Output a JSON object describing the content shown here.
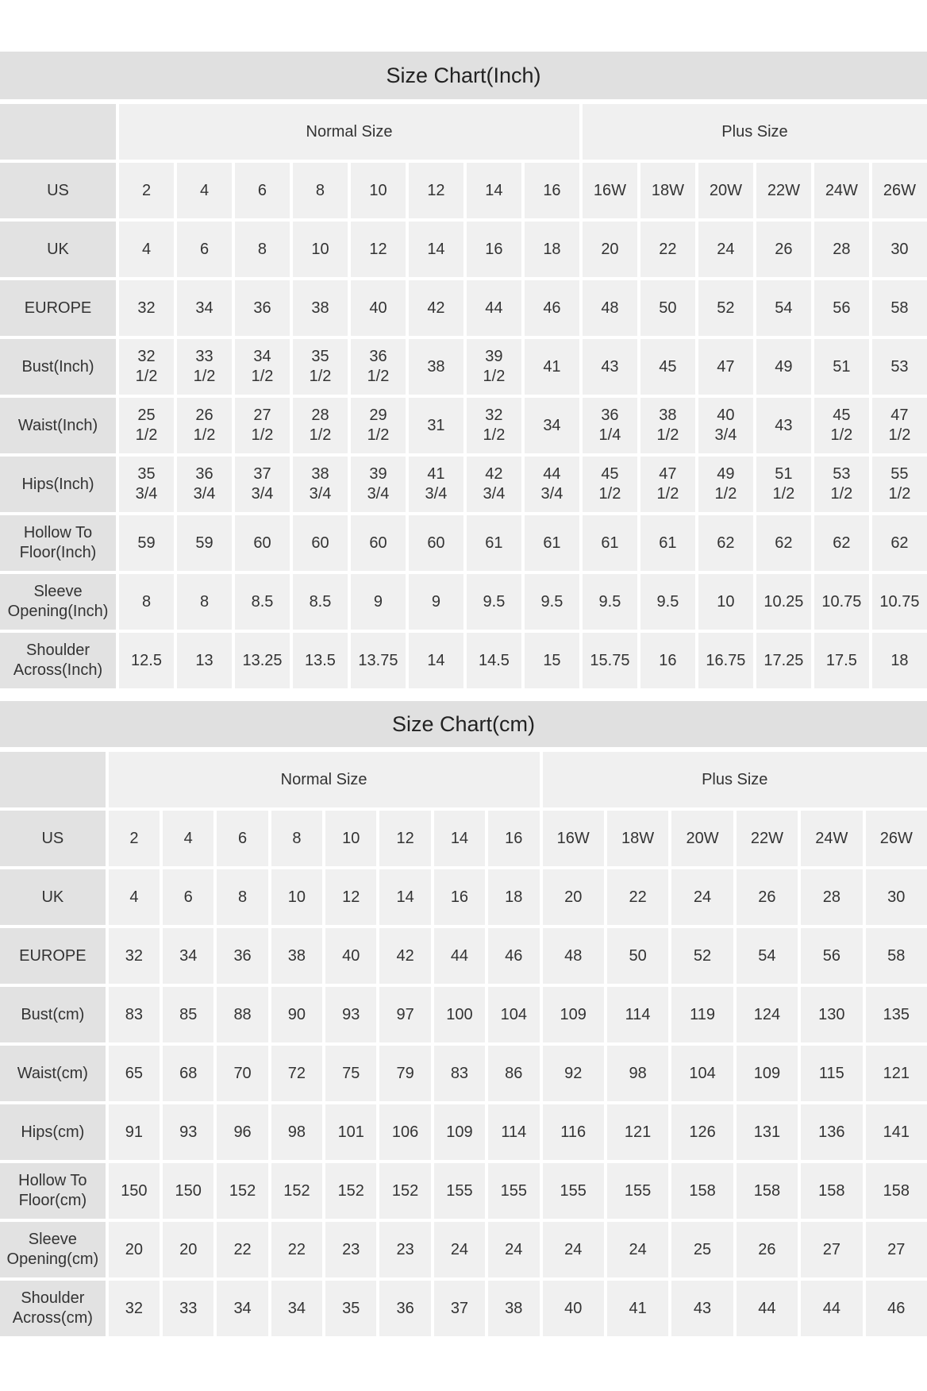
{
  "charts": [
    {
      "title": "Size Chart(Inch)",
      "groups": [
        "Normal Size",
        "Plus Size"
      ],
      "rows": [
        {
          "label": "US",
          "values": [
            "2",
            "4",
            "6",
            "8",
            "10",
            "12",
            "14",
            "16",
            "16W",
            "18W",
            "20W",
            "22W",
            "24W",
            "26W"
          ]
        },
        {
          "label": "UK",
          "values": [
            "4",
            "6",
            "8",
            "10",
            "12",
            "14",
            "16",
            "18",
            "20",
            "22",
            "24",
            "26",
            "28",
            "30"
          ]
        },
        {
          "label": "EUROPE",
          "values": [
            "32",
            "34",
            "36",
            "38",
            "40",
            "42",
            "44",
            "46",
            "48",
            "50",
            "52",
            "54",
            "56",
            "58"
          ]
        },
        {
          "label": "Bust(Inch)",
          "values": [
            "32 1/2",
            "33 1/2",
            "34 1/2",
            "35 1/2",
            "36 1/2",
            "38",
            "39 1/2",
            "41",
            "43",
            "45",
            "47",
            "49",
            "51",
            "53"
          ]
        },
        {
          "label": "Waist(Inch)",
          "values": [
            "25 1/2",
            "26 1/2",
            "27 1/2",
            "28 1/2",
            "29 1/2",
            "31",
            "32 1/2",
            "34",
            "36 1/4",
            "38 1/2",
            "40 3/4",
            "43",
            "45 1/2",
            "47 1/2"
          ]
        },
        {
          "label": "Hips(Inch)",
          "values": [
            "35 3/4",
            "36 3/4",
            "37 3/4",
            "38 3/4",
            "39 3/4",
            "41 3/4",
            "42 3/4",
            "44 3/4",
            "45 1/2",
            "47 1/2",
            "49 1/2",
            "51 1/2",
            "53 1/2",
            "55 1/2"
          ]
        },
        {
          "label": "Hollow To Floor(Inch)",
          "values": [
            "59",
            "59",
            "60",
            "60",
            "60",
            "60",
            "61",
            "61",
            "61",
            "61",
            "62",
            "62",
            "62",
            "62"
          ]
        },
        {
          "label": "Sleeve Opening(Inch)",
          "values": [
            "8",
            "8",
            "8.5",
            "8.5",
            "9",
            "9",
            "9.5",
            "9.5",
            "9.5",
            "9.5",
            "10",
            "10.25",
            "10.75",
            "10.75"
          ]
        },
        {
          "label": "Shoulder Across(Inch)",
          "values": [
            "12.5",
            "13",
            "13.25",
            "13.5",
            "13.75",
            "14",
            "14.5",
            "15",
            "15.75",
            "16",
            "16.75",
            "17.25",
            "17.5",
            "18"
          ]
        }
      ]
    },
    {
      "title": "Size Chart(cm)",
      "groups": [
        "Normal Size",
        "Plus Size"
      ],
      "rows": [
        {
          "label": "US",
          "values": [
            "2",
            "4",
            "6",
            "8",
            "10",
            "12",
            "14",
            "16",
            "16W",
            "18W",
            "20W",
            "22W",
            "24W",
            "26W"
          ]
        },
        {
          "label": "UK",
          "values": [
            "4",
            "6",
            "8",
            "10",
            "12",
            "14",
            "16",
            "18",
            "20",
            "22",
            "24",
            "26",
            "28",
            "30"
          ]
        },
        {
          "label": "EUROPE",
          "values": [
            "32",
            "34",
            "36",
            "38",
            "40",
            "42",
            "44",
            "46",
            "48",
            "50",
            "52",
            "54",
            "56",
            "58"
          ]
        },
        {
          "label": "Bust(cm)",
          "values": [
            "83",
            "85",
            "88",
            "90",
            "93",
            "97",
            "100",
            "104",
            "109",
            "114",
            "119",
            "124",
            "130",
            "135"
          ]
        },
        {
          "label": "Waist(cm)",
          "values": [
            "65",
            "68",
            "70",
            "72",
            "75",
            "79",
            "83",
            "86",
            "92",
            "98",
            "104",
            "109",
            "115",
            "121"
          ]
        },
        {
          "label": "Hips(cm)",
          "values": [
            "91",
            "93",
            "96",
            "98",
            "101",
            "106",
            "109",
            "114",
            "116",
            "121",
            "126",
            "131",
            "136",
            "141"
          ]
        },
        {
          "label": "Hollow To Floor(cm)",
          "values": [
            "150",
            "150",
            "152",
            "152",
            "152",
            "152",
            "155",
            "155",
            "155",
            "155",
            "158",
            "158",
            "158",
            "158"
          ]
        },
        {
          "label": "Sleeve Opening(cm)",
          "values": [
            "20",
            "20",
            "22",
            "22",
            "23",
            "23",
            "24",
            "24",
            "24",
            "24",
            "25",
            "26",
            "27",
            "27"
          ]
        },
        {
          "label": "Shoulder Across(cm)",
          "values": [
            "32",
            "33",
            "34",
            "34",
            "35",
            "36",
            "37",
            "38",
            "40",
            "41",
            "43",
            "44",
            "44",
            "46"
          ]
        }
      ]
    }
  ],
  "colors": {
    "title_band": "#e0e0e0",
    "label_cell": "#e2e2e2",
    "data_cell": "#f0f0f0",
    "text": "#333333"
  }
}
